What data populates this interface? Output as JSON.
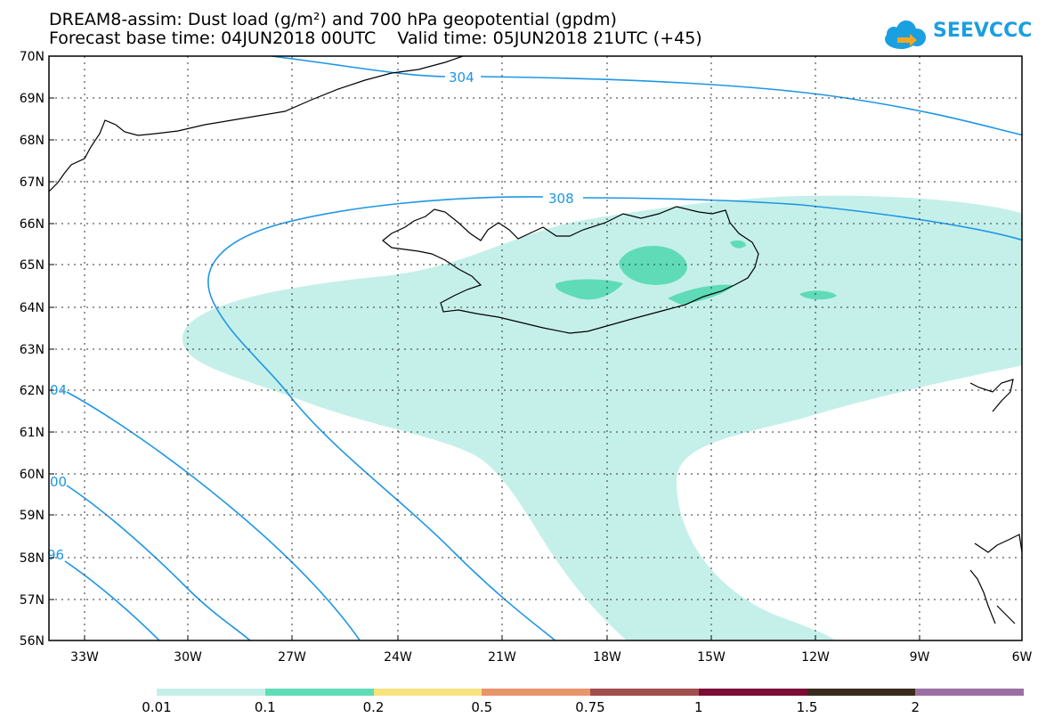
{
  "title": {
    "line1": "DREAM8-assim: Dust load (g/m²) and 700 hPa geopotential (gpdm)",
    "line2": "Forecast base time: 04JUN2018 00UTC    Valid time: 05JUN2018 21UTC (+45)"
  },
  "logo": {
    "text": "SEEVCCC",
    "icon": "cloud-icon",
    "color": "#1a9fe0"
  },
  "map": {
    "lat_labels": [
      "70N",
      "69N",
      "68N",
      "67N",
      "66N",
      "65N",
      "64N",
      "63N",
      "62N",
      "61N",
      "60N",
      "59N",
      "58N",
      "57N",
      "56N"
    ],
    "lon_labels": [
      "33W",
      "30W",
      "27W",
      "24W",
      "21W",
      "18W",
      "15W",
      "12W",
      "9W",
      "6W"
    ],
    "contour_labels": [
      "304",
      "308",
      "04",
      "00",
      "96"
    ],
    "contour_color": "#1e96e6"
  },
  "legend": {
    "labels": [
      "0.01",
      "0.1",
      "0.2",
      "0.5",
      "0.75",
      "1",
      "1.5",
      "2"
    ],
    "colors": [
      "#c5f0ea",
      "#5fdcb7",
      "#f7e47e",
      "#e8956a",
      "#a24e4e",
      "#7d0b36",
      "#3a2a1c",
      "#9b6fa3"
    ]
  }
}
